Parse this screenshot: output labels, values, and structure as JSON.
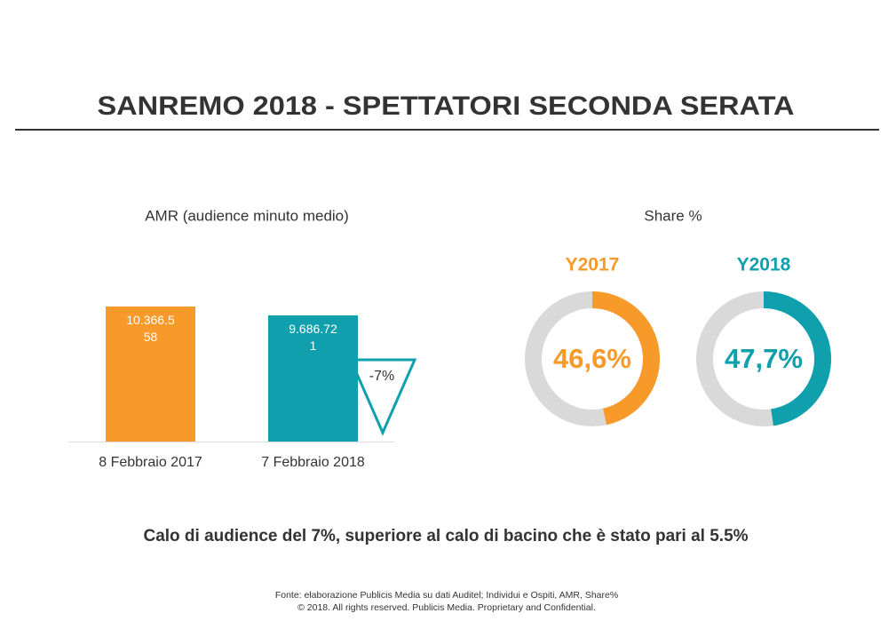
{
  "title": "SANREMO 2018 - SPETTATORI SECONDA SERATA",
  "share_heading": "Share %",
  "chart_data": [
    {
      "type": "bar",
      "title": "AMR (audience minuto medio)",
      "categories": [
        "8 Febbraio 2017",
        "7 Febbraio 2018"
      ],
      "values": [
        10366558,
        9686721
      ],
      "value_labels": [
        "10.366.558",
        "9.686.721"
      ],
      "colors": [
        "#f89a2a",
        "#109fad"
      ],
      "annotation": "-7%"
    },
    {
      "type": "donut",
      "title": "Y2017",
      "values": [
        46.6
      ],
      "value_labels": [
        "46,6%"
      ],
      "color": "#f89a2a"
    },
    {
      "type": "donut",
      "title": "Y2018",
      "values": [
        47.7
      ],
      "value_labels": [
        "47,7%"
      ],
      "color": "#109fad"
    }
  ],
  "note": "Calo di audience del 7%, superiore al calo di bacino che è stato pari al 5.5%",
  "source": [
    "Fonte: elaborazione Publicis Media su dati Auditel; Individui e Ospiti, AMR, Share%",
    "© 2018. All rights reserved. Publicis Media. Proprietary and Confidential."
  ]
}
